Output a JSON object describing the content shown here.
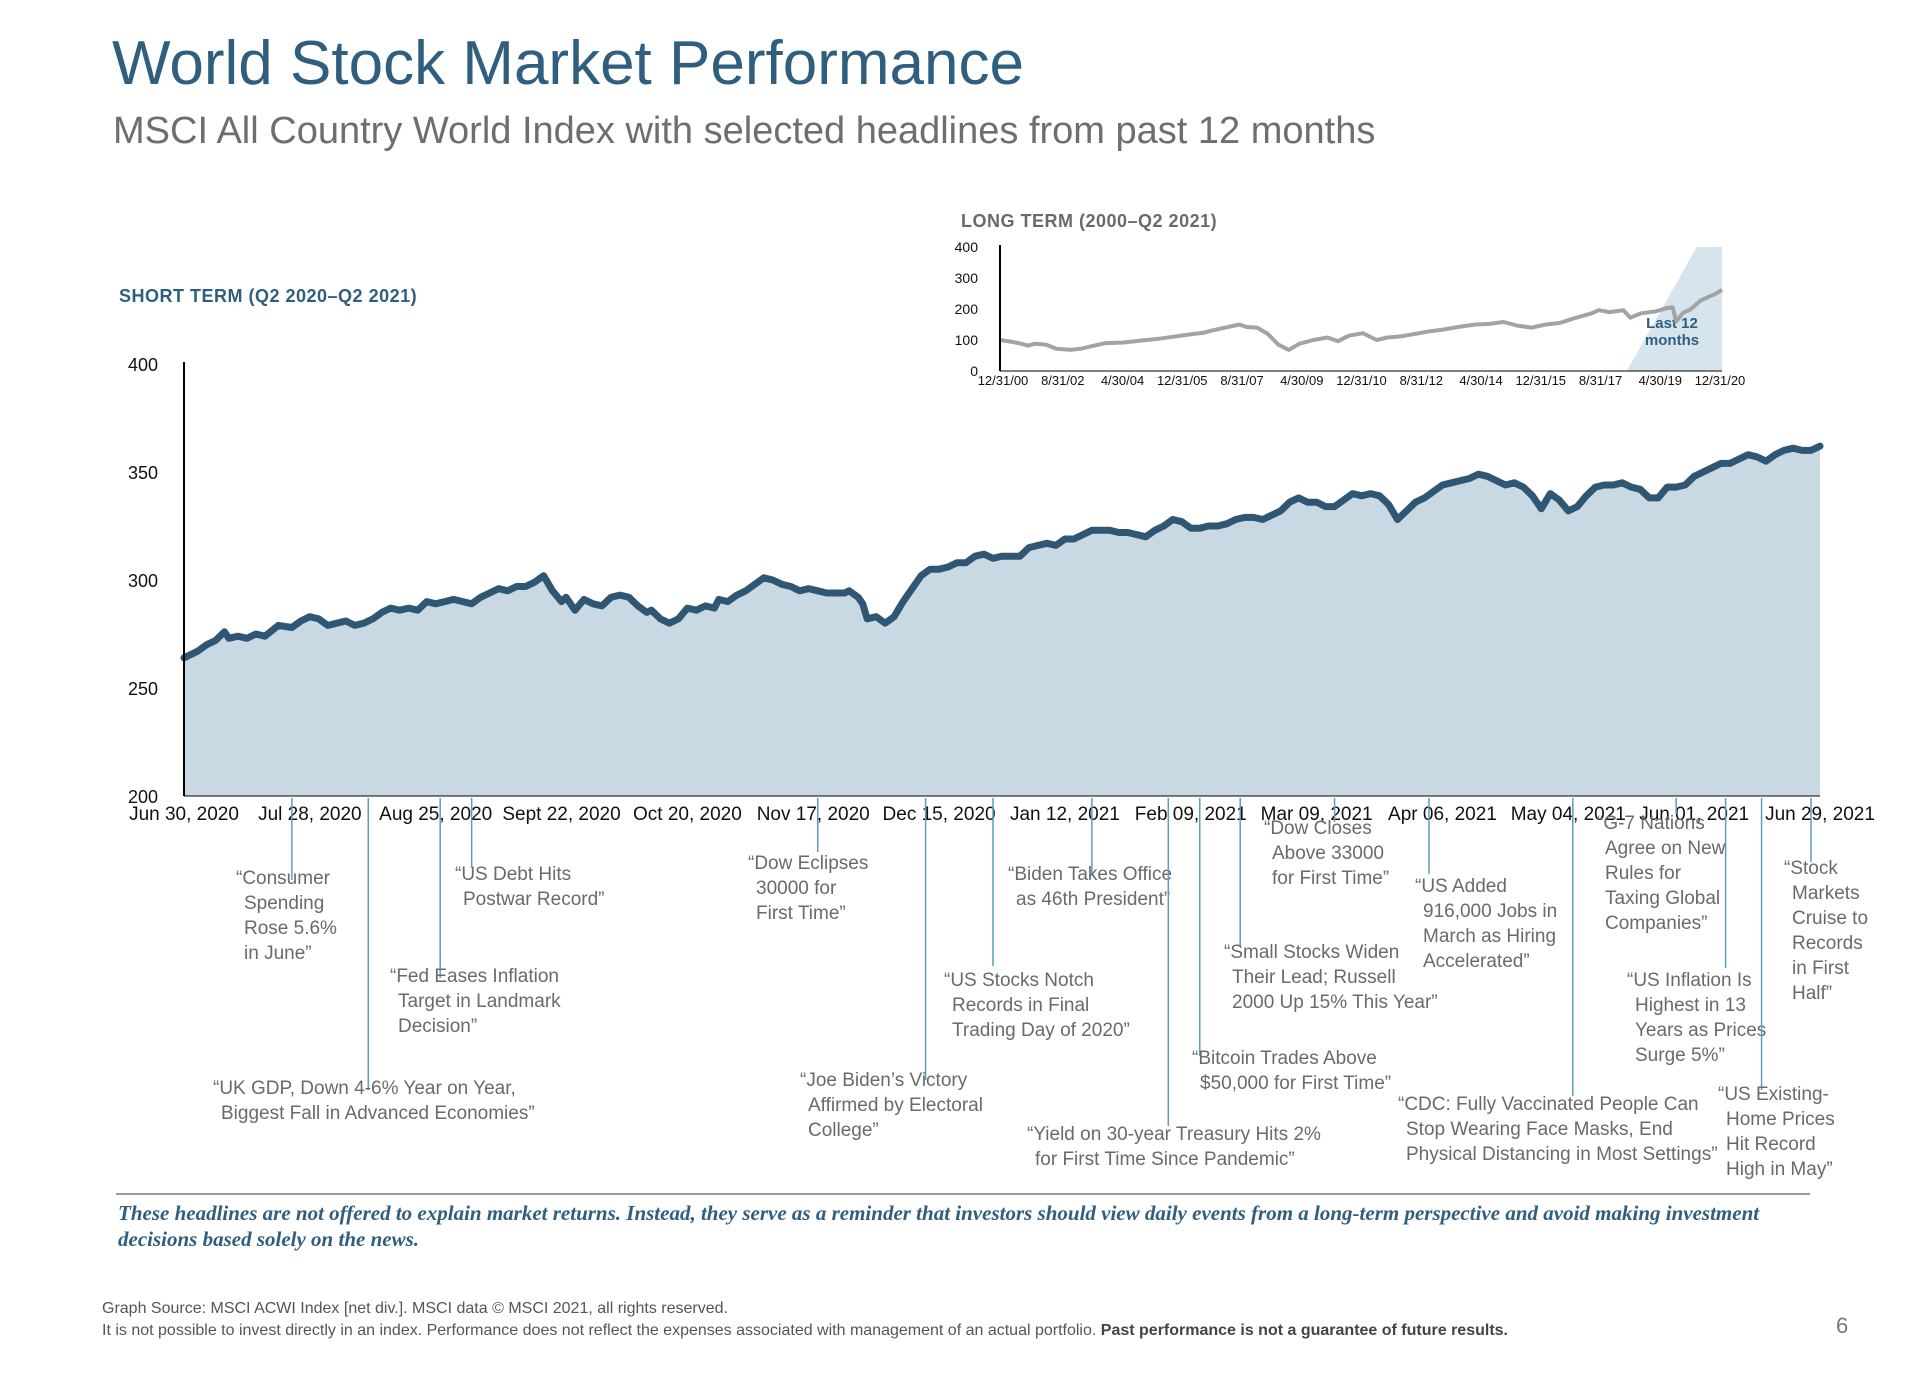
{
  "header": {
    "title": "World Stock Market Performance",
    "subtitle": "MSCI All Country World Index with selected headlines from past 12 months"
  },
  "short_term_label": "SHORT TERM (Q2 2020–Q2 2021)",
  "long_term_label": "LONG TERM (2000–Q2 2021)",
  "inset_annotation": [
    "Last 12",
    "months"
  ],
  "disclaimer": "These headlines are not offered to explain market returns. Instead, they serve as a reminder that investors should view daily events from a long-term perspective and avoid making investment decisions based solely on the news.",
  "footer": {
    "source": "Graph Source: MSCI ACWI Index [net div.]. MSCI data © MSCI 2021, all rights reserved.",
    "note": "It is not possible to invest directly in an index. Performance does not reflect the expenses associated with management of an actual portfolio.",
    "note_bold": "Past performance is not a guarantee of future results."
  },
  "page_number": "6",
  "colors": {
    "line": "#2f5773",
    "area": "#c9d9e3",
    "inset_line": "#a3a3a3",
    "inset_highlight": "#d6e4ed",
    "title": "#2f5e7f"
  },
  "chart_data": [
    {
      "type": "area",
      "name": "short-term",
      "ylim": [
        200,
        400
      ],
      "y_ticks": [
        200,
        250,
        300,
        350,
        400
      ],
      "x_ticks": [
        "Jun 30, 2020",
        "Jul 28, 2020",
        "Aug 25, 2020",
        "Sept 22, 2020",
        "Oct 20, 2020",
        "Nov 17, 2020",
        "Dec 15, 2020",
        "Jan 12, 2021",
        "Feb 09, 2021",
        "Mar 09, 2021",
        "Apr 06, 2021",
        "May 04, 2021",
        "Jun 01, 2021",
        "Jun 29, 2021"
      ],
      "x_range_days": [
        0,
        364
      ],
      "grid": false,
      "series_points": [
        [
          0,
          264
        ],
        [
          3,
          267
        ],
        [
          5,
          270
        ],
        [
          7,
          272
        ],
        [
          9,
          276
        ],
        [
          10,
          273
        ],
        [
          12,
          274
        ],
        [
          14,
          273
        ],
        [
          16,
          275
        ],
        [
          18,
          274
        ],
        [
          21,
          279
        ],
        [
          24,
          278
        ],
        [
          26,
          281
        ],
        [
          28,
          283
        ],
        [
          30,
          282
        ],
        [
          32,
          279
        ],
        [
          34,
          280
        ],
        [
          36,
          281
        ],
        [
          38,
          279
        ],
        [
          40,
          280
        ],
        [
          42,
          282
        ],
        [
          44,
          285
        ],
        [
          46,
          287
        ],
        [
          48,
          286
        ],
        [
          50,
          287
        ],
        [
          52,
          286
        ],
        [
          54,
          290
        ],
        [
          56,
          289
        ],
        [
          58,
          290
        ],
        [
          60,
          291
        ],
        [
          62,
          290
        ],
        [
          64,
          289
        ],
        [
          66,
          292
        ],
        [
          68,
          294
        ],
        [
          70,
          296
        ],
        [
          72,
          295
        ],
        [
          74,
          297
        ],
        [
          76,
          297
        ],
        [
          78,
          299
        ],
        [
          80,
          302
        ],
        [
          82,
          295
        ],
        [
          84,
          290
        ],
        [
          85,
          292
        ],
        [
          87,
          286
        ],
        [
          89,
          291
        ],
        [
          91,
          289
        ],
        [
          93,
          288
        ],
        [
          95,
          292
        ],
        [
          97,
          293
        ],
        [
          99,
          292
        ],
        [
          101,
          288
        ],
        [
          103,
          285
        ],
        [
          104,
          286
        ],
        [
          106,
          282
        ],
        [
          108,
          280
        ],
        [
          110,
          282
        ],
        [
          112,
          287
        ],
        [
          114,
          286
        ],
        [
          116,
          288
        ],
        [
          118,
          287
        ],
        [
          119,
          291
        ],
        [
          121,
          290
        ],
        [
          123,
          293
        ],
        [
          125,
          295
        ],
        [
          127,
          298
        ],
        [
          129,
          301
        ],
        [
          131,
          300
        ],
        [
          133,
          298
        ],
        [
          135,
          297
        ],
        [
          137,
          295
        ],
        [
          139,
          296
        ],
        [
          141,
          295
        ],
        [
          143,
          294
        ],
        [
          145,
          294
        ],
        [
          147,
          294
        ],
        [
          148,
          295
        ],
        [
          150,
          292
        ],
        [
          151,
          289
        ],
        [
          152,
          282
        ],
        [
          154,
          283
        ],
        [
          156,
          280
        ],
        [
          158,
          283
        ],
        [
          160,
          290
        ],
        [
          162,
          296
        ],
        [
          164,
          302
        ],
        [
          166,
          305
        ],
        [
          168,
          305
        ],
        [
          170,
          306
        ],
        [
          172,
          308
        ],
        [
          174,
          308
        ],
        [
          176,
          311
        ],
        [
          178,
          312
        ],
        [
          180,
          310
        ],
        [
          182,
          311
        ],
        [
          184,
          311
        ],
        [
          186,
          311
        ],
        [
          188,
          315
        ],
        [
          190,
          316
        ],
        [
          192,
          317
        ],
        [
          194,
          316
        ],
        [
          196,
          319
        ],
        [
          198,
          319
        ],
        [
          200,
          321
        ],
        [
          202,
          323
        ],
        [
          204,
          323
        ],
        [
          206,
          323
        ],
        [
          208,
          322
        ],
        [
          210,
          322
        ],
        [
          212,
          321
        ],
        [
          214,
          320
        ],
        [
          216,
          323
        ],
        [
          218,
          325
        ],
        [
          220,
          328
        ],
        [
          222,
          327
        ],
        [
          224,
          324
        ],
        [
          226,
          324
        ],
        [
          228,
          325
        ],
        [
          230,
          325
        ],
        [
          232,
          326
        ],
        [
          234,
          328
        ],
        [
          236,
          329
        ],
        [
          238,
          329
        ],
        [
          240,
          328
        ],
        [
          242,
          330
        ],
        [
          244,
          332
        ],
        [
          246,
          336
        ],
        [
          248,
          338
        ],
        [
          250,
          336
        ],
        [
          252,
          336
        ],
        [
          254,
          334
        ],
        [
          256,
          334
        ],
        [
          258,
          337
        ],
        [
          260,
          340
        ],
        [
          262,
          339
        ],
        [
          264,
          340
        ],
        [
          266,
          339
        ],
        [
          268,
          335
        ],
        [
          270,
          328
        ],
        [
          272,
          332
        ],
        [
          274,
          336
        ],
        [
          276,
          338
        ],
        [
          278,
          341
        ],
        [
          280,
          344
        ],
        [
          282,
          345
        ],
        [
          284,
          346
        ],
        [
          286,
          347
        ],
        [
          288,
          349
        ],
        [
          290,
          348
        ],
        [
          292,
          346
        ],
        [
          294,
          344
        ],
        [
          296,
          345
        ],
        [
          298,
          343
        ],
        [
          300,
          339
        ],
        [
          302,
          333
        ],
        [
          304,
          340
        ],
        [
          306,
          337
        ],
        [
          308,
          332
        ],
        [
          310,
          334
        ],
        [
          312,
          339
        ],
        [
          314,
          343
        ],
        [
          316,
          344
        ],
        [
          318,
          344
        ],
        [
          320,
          345
        ],
        [
          322,
          343
        ],
        [
          324,
          342
        ],
        [
          326,
          338
        ],
        [
          328,
          338
        ],
        [
          330,
          343
        ],
        [
          332,
          343
        ],
        [
          334,
          344
        ],
        [
          336,
          348
        ],
        [
          338,
          350
        ],
        [
          340,
          352
        ],
        [
          342,
          354
        ],
        [
          344,
          354
        ],
        [
          346,
          356
        ],
        [
          348,
          358
        ],
        [
          350,
          357
        ],
        [
          352,
          355
        ],
        [
          354,
          358
        ],
        [
          356,
          360
        ],
        [
          358,
          361
        ],
        [
          360,
          360
        ],
        [
          362,
          360
        ],
        [
          364,
          362
        ]
      ],
      "series_smoothing_note": "",
      "headlines": [
        {
          "text": [
            "“Consumer",
            "Spending",
            "Rose 5.6%",
            "in June”"
          ],
          "date_day": 24
        },
        {
          "text": [
            "“UK GDP, Down 4-6% Year on Year,",
            "Biggest Fall in Advanced Economies”"
          ],
          "date_day": 41
        },
        {
          "text": [
            "“Fed Eases Inflation",
            "Target in Landmark",
            "Decision”"
          ],
          "date_day": 57
        },
        {
          "text": [
            "“US Debt Hits",
            "Postwar Record”"
          ],
          "date_day": 64
        },
        {
          "text": [
            "“Dow Eclipses",
            "30000 for",
            "First Time”"
          ],
          "date_day": 141
        },
        {
          "text": [
            "“Joe Biden’s Victory",
            "Affirmed by Electoral",
            "College”"
          ],
          "date_day": 165
        },
        {
          "text": [
            "“US Stocks Notch",
            "Records in Final",
            "Trading Day of 2020”"
          ],
          "date_day": 180
        },
        {
          "text": [
            "“Biden Takes Office",
            "as 46th President”"
          ],
          "date_day": 202
        },
        {
          "text": [
            "“Yield on 30-year Treasury Hits 2%",
            "for First Time Since Pandemic”"
          ],
          "date_day": 219
        },
        {
          "text": [
            "“Bitcoin Trades Above",
            "$50,000 for First Time”"
          ],
          "date_day": 226
        },
        {
          "text": [
            "“Small Stocks Widen",
            "Their Lead; Russell",
            "2000 Up 15% This Year”"
          ],
          "date_day": 235
        },
        {
          "text": [
            "“Dow Closes",
            "Above 33000",
            "for First Time”"
          ],
          "date_day": 256
        },
        {
          "text": [
            "“US Added",
            "916,000 Jobs in",
            "March as Hiring",
            "Accelerated”"
          ],
          "date_day": 277
        },
        {
          "text": [
            "“CDC: Fully Vaccinated People Can",
            "Stop Wearing Face Masks, End",
            "Physical Distancing in Most Settings”"
          ],
          "date_day": 309
        },
        {
          "text": [
            "“G-7 Nations",
            "Agree on New",
            "Rules for",
            "Taxing Global",
            "Companies”"
          ],
          "date_day": 332
        },
        {
          "text": [
            "“US Inflation Is",
            "Highest in 13",
            "Years as Prices",
            "Surge 5%”"
          ],
          "date_day": 343
        },
        {
          "text": [
            "“US Existing-",
            "Home Prices",
            "Hit Record",
            "High in May”"
          ],
          "date_day": 351
        },
        {
          "text": [
            "“Stock",
            "Markets",
            "Cruise to",
            "Records",
            "in First",
            "Half”"
          ],
          "date_day": 362
        }
      ]
    },
    {
      "type": "line",
      "name": "long-term",
      "ylim": [
        0,
        400
      ],
      "y_ticks": [
        0,
        100,
        200,
        300,
        400
      ],
      "x_ticks": [
        "12/31/00",
        "8/31/02",
        "4/30/04",
        "12/31/05",
        "8/31/07",
        "4/30/09",
        "12/31/10",
        "8/31/12",
        "4/30/14",
        "12/31/15",
        "8/31/17",
        "4/30/19",
        "12/31/20"
      ],
      "x_range_years": [
        2001.0,
        2021.5
      ],
      "highlight_from_year": 2020.5,
      "series_points": [
        [
          2001.0,
          100
        ],
        [
          2001.3,
          95
        ],
        [
          2001.6,
          88
        ],
        [
          2001.8,
          82
        ],
        [
          2002.0,
          88
        ],
        [
          2002.3,
          85
        ],
        [
          2002.6,
          72
        ],
        [
          2002.8,
          70
        ],
        [
          2003.0,
          68
        ],
        [
          2003.3,
          72
        ],
        [
          2003.6,
          80
        ],
        [
          2004.0,
          90
        ],
        [
          2004.5,
          92
        ],
        [
          2005.0,
          98
        ],
        [
          2005.5,
          104
        ],
        [
          2006.0,
          112
        ],
        [
          2006.4,
          118
        ],
        [
          2006.8,
          124
        ],
        [
          2007.0,
          130
        ],
        [
          2007.4,
          140
        ],
        [
          2007.8,
          150
        ],
        [
          2008.0,
          142
        ],
        [
          2008.3,
          140
        ],
        [
          2008.6,
          120
        ],
        [
          2008.9,
          85
        ],
        [
          2009.2,
          68
        ],
        [
          2009.5,
          88
        ],
        [
          2009.9,
          100
        ],
        [
          2010.3,
          108
        ],
        [
          2010.6,
          96
        ],
        [
          2010.9,
          114
        ],
        [
          2011.3,
          122
        ],
        [
          2011.7,
          100
        ],
        [
          2012.0,
          108
        ],
        [
          2012.4,
          112
        ],
        [
          2012.8,
          120
        ],
        [
          2013.2,
          128
        ],
        [
          2013.6,
          134
        ],
        [
          2014.0,
          142
        ],
        [
          2014.5,
          150
        ],
        [
          2014.9,
          152
        ],
        [
          2015.3,
          158
        ],
        [
          2015.7,
          146
        ],
        [
          2016.1,
          140
        ],
        [
          2016.5,
          150
        ],
        [
          2016.9,
          155
        ],
        [
          2017.3,
          170
        ],
        [
          2017.8,
          186
        ],
        [
          2018.0,
          196
        ],
        [
          2018.3,
          190
        ],
        [
          2018.7,
          196
        ],
        [
          2018.9,
          172
        ],
        [
          2019.2,
          186
        ],
        [
          2019.6,
          192
        ],
        [
          2019.9,
          202
        ],
        [
          2020.1,
          205
        ],
        [
          2020.2,
          160
        ],
        [
          2020.4,
          188
        ],
        [
          2020.6,
          198
        ],
        [
          2020.9,
          228
        ],
        [
          2021.1,
          238
        ],
        [
          2021.3,
          248
        ],
        [
          2021.5,
          262
        ]
      ]
    }
  ]
}
